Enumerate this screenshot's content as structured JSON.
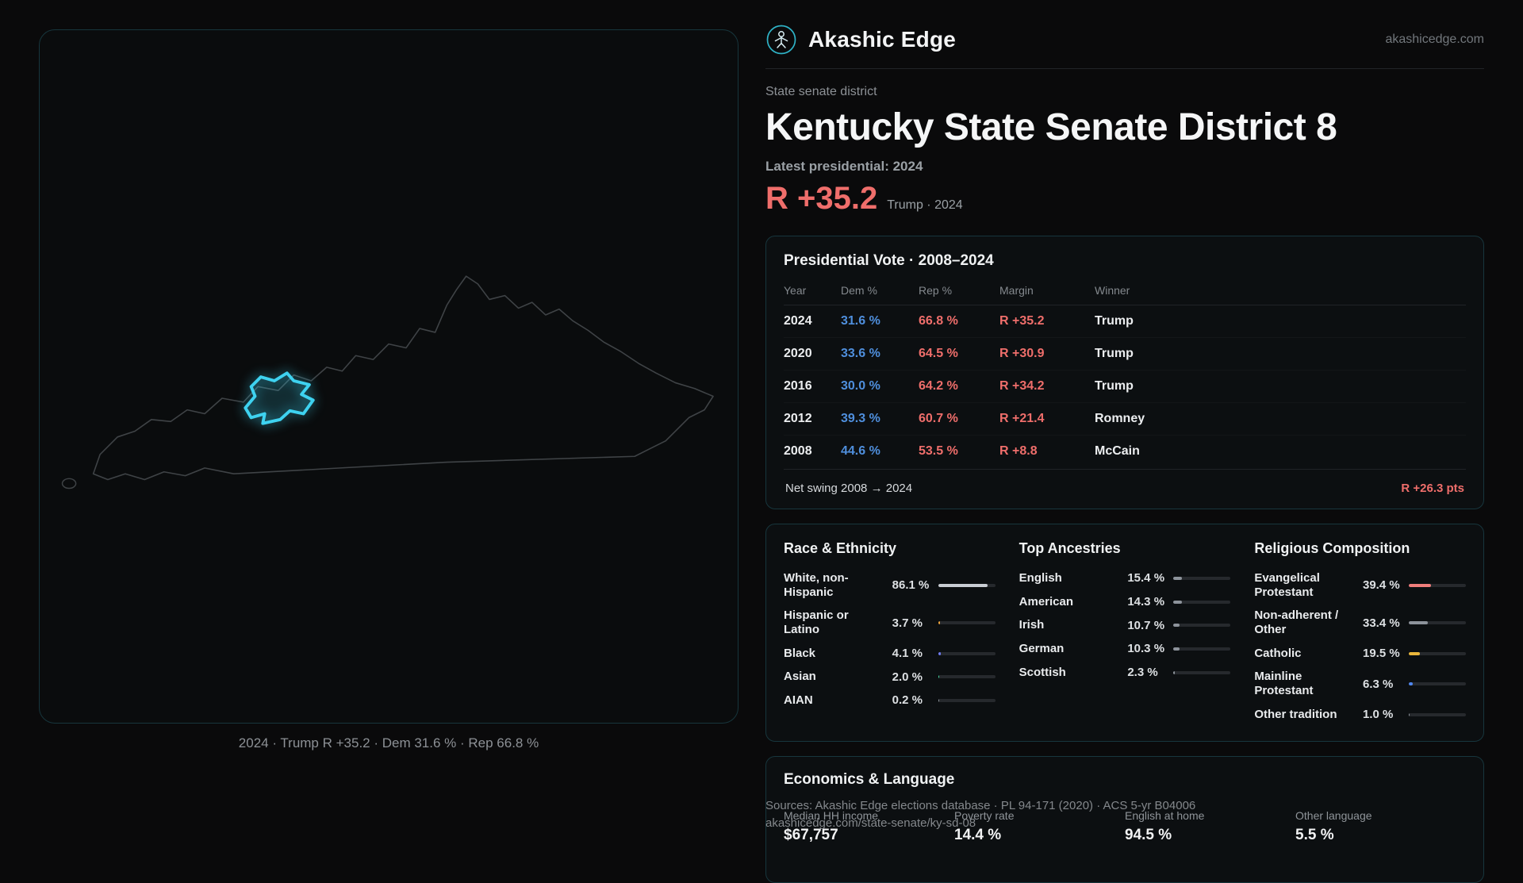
{
  "brand": {
    "name": "Akashic Edge",
    "domain": "akashicedge.com"
  },
  "header": {
    "kicker": "State senate district",
    "title": "Kentucky State Senate District 8",
    "latest_label": "Latest presidential: 2024",
    "headline_margin": "R +35.2",
    "headline_detail": "Trump · 2024"
  },
  "map": {
    "caption": "2024 · Trump R +35.2 · Dem 31.6 % · Rep 66.8 %",
    "district_color": "#3ed2f0"
  },
  "presidential": {
    "title": "Presidential Vote · 2008–2024",
    "columns": [
      "Year",
      "Dem %",
      "Rep %",
      "Margin",
      "Winner"
    ],
    "rows": [
      {
        "year": "2024",
        "dem": "31.6 %",
        "rep": "66.8 %",
        "margin": "R +35.2",
        "winner": "Trump"
      },
      {
        "year": "2020",
        "dem": "33.6 %",
        "rep": "64.5 %",
        "margin": "R +30.9",
        "winner": "Trump"
      },
      {
        "year": "2016",
        "dem": "30.0 %",
        "rep": "64.2 %",
        "margin": "R +34.2",
        "winner": "Trump"
      },
      {
        "year": "2012",
        "dem": "39.3 %",
        "rep": "60.7 %",
        "margin": "R +21.4",
        "winner": "Romney"
      },
      {
        "year": "2008",
        "dem": "44.6 %",
        "rep": "53.5 %",
        "margin": "R +8.8",
        "winner": "McCain"
      }
    ],
    "net_swing_label": "Net swing 2008 → 2024",
    "net_swing_value": "R +26.3 pts"
  },
  "demographics": {
    "race": {
      "title": "Race & Ethnicity",
      "rows": [
        {
          "label": "White, non-Hispanic",
          "value": "86.1 %",
          "pct": 86.1,
          "color": "#c9cdd3"
        },
        {
          "label": "Hispanic or Latino",
          "value": "3.7 %",
          "pct": 3.7,
          "color": "#f0a53c"
        },
        {
          "label": "Black",
          "value": "4.1 %",
          "pct": 4.1,
          "color": "#6f7bf2"
        },
        {
          "label": "Asian",
          "value": "2.0 %",
          "pct": 2.0,
          "color": "#43d6a0"
        },
        {
          "label": "AIAN",
          "value": "0.2 %",
          "pct": 0.2,
          "color": "#8d939b"
        }
      ]
    },
    "ancestries": {
      "title": "Top Ancestries",
      "rows": [
        {
          "label": "English",
          "value": "15.4 %",
          "pct": 15.4,
          "color": "#8d939b"
        },
        {
          "label": "American",
          "value": "14.3 %",
          "pct": 14.3,
          "color": "#8d939b"
        },
        {
          "label": "Irish",
          "value": "10.7 %",
          "pct": 10.7,
          "color": "#8d939b"
        },
        {
          "label": "German",
          "value": "10.3 %",
          "pct": 10.3,
          "color": "#8d939b"
        },
        {
          "label": "Scottish",
          "value": "2.3 %",
          "pct": 2.3,
          "color": "#8d939b"
        }
      ]
    },
    "religion": {
      "title": "Religious Composition",
      "rows": [
        {
          "label": "Evangelical Protestant",
          "value": "39.4 %",
          "pct": 39.4,
          "color": "#ef7d7b"
        },
        {
          "label": "Non-adherent / Other",
          "value": "33.4 %",
          "pct": 33.4,
          "color": "#8d939b"
        },
        {
          "label": "Catholic",
          "value": "19.5 %",
          "pct": 19.5,
          "color": "#e9b63b"
        },
        {
          "label": "Mainline Protestant",
          "value": "6.3 %",
          "pct": 6.3,
          "color": "#4f86ef"
        },
        {
          "label": "Other tradition",
          "value": "1.0 %",
          "pct": 1.0,
          "color": "#8d939b"
        }
      ]
    }
  },
  "economics": {
    "title": "Economics & Language",
    "stats": [
      {
        "label": "Median HH income",
        "value": "$67,757"
      },
      {
        "label": "Poverty rate",
        "value": "14.4 %"
      },
      {
        "label": "English at home",
        "value": "94.5 %"
      },
      {
        "label": "Other language",
        "value": "5.5 %"
      }
    ]
  },
  "footer": {
    "sources_line": "Sources: Akashic Edge elections database · PL 94-171 (2020) · ACS 5-yr B04006",
    "permalink": "akashicedge.com/state-senate/ky-sd-08"
  }
}
